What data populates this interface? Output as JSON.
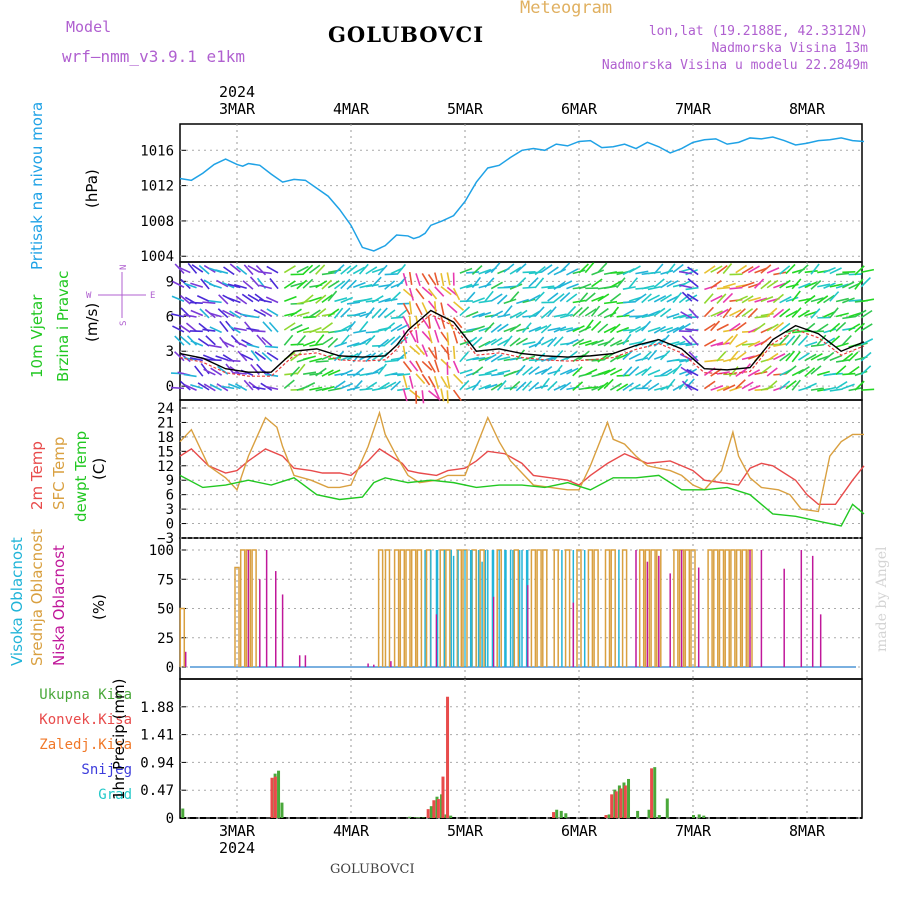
{
  "header": {
    "model_label": "Model",
    "model_name": "wrf—nmm_v3.9.1 e1km",
    "station": "GOLUBOVCI",
    "product": "Meteogram",
    "lonlat": "lon,lat (19.2188E, 42.3312N)",
    "elevation": "Nadmorska Visina 13m",
    "model_elevation": "Nadmorska Visina u modelu 22.2849m",
    "signature": "made by Angel",
    "footer_station": "GOLUBOVCI"
  },
  "colors": {
    "pressure": "#1fa2e6",
    "temp2m": "#e84b4b",
    "sfc_temp": "#d9a040",
    "dewpoint": "#22c822",
    "high_cloud": "#22b4d8",
    "mid_cloud": "#d9a040",
    "low_cloud": "#c0189a",
    "total_precip": "#4aa83a",
    "convective": "#e84b4b",
    "frozen": "#f07828",
    "snow": "#3c3cdc",
    "hail": "#22c8c8",
    "wind_speed": "#000000",
    "wind_red": "#e83a3a"
  },
  "chart_data": [
    {
      "panel": "pressure",
      "type": "line",
      "ylabel": [
        "Pritisak na nivou mora",
        "(hPa)"
      ],
      "yticks": [
        "1004",
        "1008",
        "1012",
        "1016"
      ],
      "ylim": [
        1003.8,
        1018.3
      ],
      "xticks": [
        "3MAR",
        "4MAR",
        "5MAR",
        "6MAR",
        "7MAR",
        "8MAR"
      ],
      "year": "2024",
      "series": [
        {
          "x": [
            0,
            0.1,
            0.2,
            0.3,
            0.4,
            0.5,
            0.55,
            0.6,
            0.7,
            0.8,
            0.9,
            1.0,
            1.1,
            1.2,
            1.3,
            1.4,
            1.5,
            1.6,
            1.7,
            1.8,
            1.9,
            2.0,
            2.05,
            2.1,
            2.15,
            2.2,
            2.3,
            2.4,
            2.5,
            2.6,
            2.7,
            2.8,
            2.9,
            3.0,
            3.1,
            3.2,
            3.3,
            3.4,
            3.5,
            3.6,
            3.7,
            3.8,
            3.9,
            4.0,
            4.1,
            4.2,
            4.3,
            4.4,
            4.5,
            4.6,
            4.7,
            4.8,
            4.9,
            5.0,
            5.1,
            5.2,
            5.3,
            5.4,
            5.5,
            5.6,
            5.7,
            5.8,
            5.9,
            6.0
          ],
          "y": [
            1012.8,
            1012.6,
            1013.4,
            1014.4,
            1015.0,
            1014.4,
            1014.2,
            1014.5,
            1014.3,
            1013.3,
            1012.4,
            1012.7,
            1012.6,
            1011.7,
            1010.8,
            1009.3,
            1007.5,
            1005.0,
            1004.6,
            1005.2,
            1006.4,
            1006.3,
            1006.0,
            1006.2,
            1006.6,
            1007.5,
            1008.0,
            1008.6,
            1010.2,
            1012.4,
            1014.0,
            1014.3,
            1015.2,
            1016.0,
            1016.2,
            1016.0,
            1016.7,
            1016.5,
            1017.0,
            1017.1,
            1016.3,
            1016.4,
            1016.7,
            1016.2,
            1016.9,
            1016.4,
            1015.7,
            1016.2,
            1016.9,
            1017.2,
            1017.3,
            1016.7,
            1016.9,
            1017.4,
            1017.3,
            1017.5,
            1017.1,
            1016.6,
            1016.8,
            1017.1,
            1017.2,
            1017.4,
            1017.1,
            1017.0
          ]
        }
      ]
    },
    {
      "panel": "wind",
      "type": "line",
      "ylabel": [
        "10m Vjetar",
        "Brzina i Pravac",
        "(m/s)"
      ],
      "compass": {
        "n": "N",
        "s": "S",
        "w": "W",
        "e": "E"
      },
      "yticks": [
        "0",
        "3",
        "6",
        "9"
      ],
      "ylim": [
        -0.5,
        9.8
      ],
      "series": [
        {
          "name": "speed",
          "x": [
            0,
            0.2,
            0.4,
            0.6,
            0.8,
            1.0,
            1.2,
            1.4,
            1.6,
            1.8,
            1.9,
            2.0,
            2.2,
            2.4,
            2.6,
            2.8,
            3.0,
            3.2,
            3.4,
            3.6,
            3.8,
            4.0,
            4.2,
            4.4,
            4.6,
            4.8,
            5.0,
            5.2,
            5.4,
            5.6,
            5.8,
            6.0
          ],
          "y": [
            2.8,
            2.4,
            1.5,
            1.2,
            1.2,
            3.0,
            3.2,
            2.6,
            2.5,
            2.6,
            3.5,
            4.8,
            6.5,
            5.5,
            3.0,
            3.2,
            2.8,
            2.6,
            2.5,
            2.6,
            2.8,
            3.5,
            4.0,
            3.2,
            1.5,
            1.4,
            1.6,
            4.0,
            5.2,
            4.5,
            3.0,
            3.8
          ]
        }
      ]
    },
    {
      "panel": "temperature",
      "type": "line",
      "ylabel": [
        "2m Temp",
        "SFC Temp",
        "dewpt Temp",
        "(C)"
      ],
      "yticks": [
        "−3",
        "0",
        "3",
        "6",
        "9",
        "12",
        "15",
        "18",
        "21",
        "24"
      ],
      "ylim": [
        -3,
        24
      ],
      "series": [
        {
          "name": "2m Temp",
          "x": [
            0,
            0.1,
            0.25,
            0.4,
            0.5,
            0.6,
            0.75,
            0.9,
            1.0,
            1.15,
            1.25,
            1.4,
            1.5,
            1.65,
            1.75,
            1.85,
            1.95,
            2.0,
            2.1,
            2.25,
            2.35,
            2.5,
            2.6,
            2.7,
            2.85,
            3.0,
            3.1,
            3.25,
            3.4,
            3.5,
            3.6,
            3.75,
            3.9,
            4.0,
            4.1,
            4.3,
            4.4,
            4.5,
            4.6,
            4.75,
            4.9,
            5.0,
            5.1,
            5.2,
            5.4,
            5.5,
            5.6,
            5.75,
            5.9,
            6.0
          ],
          "y": [
            14,
            15.5,
            12,
            10.5,
            11,
            13,
            15.5,
            14,
            11.5,
            11,
            10.5,
            10.5,
            10,
            13,
            15.5,
            14,
            12.5,
            11,
            10.5,
            10,
            11,
            11.5,
            13,
            15,
            14.5,
            12.5,
            10,
            9.5,
            9,
            8,
            10,
            12.5,
            14.5,
            13.5,
            12.5,
            13,
            12,
            11,
            9,
            8.5,
            8,
            11.5,
            12.5,
            12,
            9,
            6,
            4,
            4,
            9,
            12
          ]
        },
        {
          "name": "SFC Temp",
          "x": [
            0,
            0.1,
            0.25,
            0.4,
            0.5,
            0.6,
            0.75,
            0.85,
            0.9,
            1.0,
            1.15,
            1.3,
            1.4,
            1.5,
            1.65,
            1.75,
            1.8,
            1.9,
            2.0,
            2.1,
            2.25,
            2.35,
            2.5,
            2.6,
            2.7,
            2.8,
            2.9,
            3.0,
            3.1,
            3.25,
            3.4,
            3.5,
            3.6,
            3.75,
            3.8,
            3.9,
            4.0,
            4.1,
            4.3,
            4.4,
            4.5,
            4.6,
            4.75,
            4.85,
            4.9,
            5.0,
            5.1,
            5.25,
            5.35,
            5.45,
            5.6,
            5.7,
            5.8,
            5.9,
            6.0
          ],
          "y": [
            17,
            19.5,
            12,
            9.5,
            7,
            14,
            22,
            20,
            16,
            10,
            9,
            7.5,
            7.5,
            8,
            16,
            23,
            18.5,
            14,
            10,
            8.5,
            9,
            10,
            10,
            16,
            22,
            17,
            13,
            10.5,
            8,
            7.5,
            7,
            7,
            12,
            21,
            17.5,
            16.5,
            14,
            12,
            11,
            10,
            8,
            7,
            11,
            19,
            14,
            9.5,
            7.5,
            7,
            6,
            3,
            2.5,
            14,
            17,
            18.5,
            18.5
          ]
        },
        {
          "name": "dewpt Temp",
          "x": [
            0,
            0.2,
            0.4,
            0.6,
            0.8,
            1.0,
            1.2,
            1.4,
            1.6,
            1.7,
            1.8,
            2.0,
            2.2,
            2.4,
            2.6,
            2.8,
            3.0,
            3.2,
            3.4,
            3.6,
            3.8,
            4.0,
            4.2,
            4.4,
            4.6,
            4.8,
            5.0,
            5.2,
            5.4,
            5.6,
            5.8,
            5.9,
            6.0
          ],
          "y": [
            10,
            7.5,
            8,
            9,
            8,
            9.5,
            6,
            5,
            5.5,
            8.5,
            9.5,
            8.5,
            9,
            8.5,
            7.5,
            8,
            8,
            7.5,
            8.5,
            7,
            9.5,
            9.5,
            10,
            7,
            7,
            7.5,
            6,
            2,
            1.5,
            0.5,
            -0.5,
            4,
            2
          ]
        }
      ]
    },
    {
      "panel": "cloud",
      "type": "bar",
      "ylabel": [
        "Visoka Oblacnost",
        "Srednja Oblacnost",
        "Niska Oblacnost",
        "(%)"
      ],
      "yticks": [
        "0",
        "25",
        "50",
        "75",
        "100"
      ],
      "ylim": [
        0,
        100
      ],
      "series": [
        {
          "name": "Visoka Oblacnost",
          "x": [
            2.15,
            2.2,
            2.25,
            2.4,
            2.55,
            2.6,
            2.65,
            2.7,
            2.75,
            2.85,
            2.9,
            3.0,
            3.05,
            3.35,
            3.45,
            3.55,
            3.85
          ],
          "y": [
            100,
            100,
            100,
            95,
            100,
            100,
            90,
            100,
            100,
            100,
            100,
            100,
            100,
            100,
            100,
            100,
            100
          ]
        },
        {
          "name": "Srednja Oblacnost",
          "x": [
            0.02,
            0.5,
            0.55,
            0.6,
            0.65,
            1.76,
            1.82,
            1.9,
            1.95,
            2.0,
            2.05,
            2.1,
            2.18,
            2.3,
            2.35,
            2.45,
            2.5,
            2.58,
            2.65,
            2.8,
            2.95,
            3.1,
            3.15,
            3.2,
            3.3,
            3.4,
            3.5,
            3.6,
            3.65,
            3.75,
            3.8,
            3.9,
            4.05,
            4.1,
            4.15,
            4.2,
            4.35,
            4.4,
            4.45,
            4.5,
            4.65,
            4.7,
            4.75,
            4.8,
            4.85,
            4.9,
            4.95,
            5.0
          ],
          "y": [
            50,
            85,
            100,
            100,
            100,
            100,
            100,
            100,
            100,
            100,
            100,
            100,
            100,
            100,
            100,
            100,
            100,
            100,
            100,
            100,
            100,
            100,
            100,
            100,
            100,
            100,
            100,
            100,
            100,
            100,
            100,
            100,
            100,
            100,
            100,
            100,
            100,
            100,
            100,
            100,
            100,
            100,
            100,
            100,
            100,
            100,
            100,
            100
          ]
        },
        {
          "name": "Niska Oblacnost",
          "x": [
            0.05,
            0.6,
            0.7,
            0.76,
            0.84,
            0.9,
            1.05,
            1.1,
            1.65,
            1.7,
            1.85,
            2.25,
            2.75,
            3.05,
            3.45,
            4.0,
            4.1,
            4.2,
            4.3,
            4.4,
            4.55,
            5.0,
            5.1,
            5.3,
            5.45,
            5.55,
            5.62
          ],
          "y": [
            13,
            100,
            75,
            100,
            82,
            62,
            10,
            10,
            3,
            2,
            5,
            45,
            60,
            70,
            55,
            100,
            90,
            95,
            80,
            100,
            85,
            100,
            100,
            84,
            100,
            95,
            45
          ]
        }
      ]
    },
    {
      "panel": "precip",
      "type": "bar",
      "ylabel": [
        "1hr Precip (mm)"
      ],
      "legend": [
        "Ukupna Kisa",
        "Konvek.Kisa",
        "Zaledj.Kisa",
        "Snijeg",
        "Grad"
      ],
      "yticks": [
        "0",
        "0.47",
        "0.94",
        "1.41",
        "1.88"
      ],
      "ylim": [
        0,
        2.35
      ],
      "xticks": [
        "3MAR",
        "4MAR",
        "5MAR",
        "6MAR",
        "7MAR",
        "8MAR"
      ],
      "year": "2024",
      "series": [
        {
          "name": "Ukupna Kisa",
          "x": [
            0.02,
            0.83,
            0.86,
            0.89,
            2.01,
            2.06,
            2.09,
            2.13,
            2.2,
            2.25,
            2.29,
            2.33,
            2.37,
            3.3,
            3.34,
            3.38,
            3.76,
            3.81,
            3.85,
            3.89,
            3.93,
            4.01,
            4.11,
            4.16,
            4.2,
            4.27,
            4.5,
            4.55,
            4.59
          ],
          "y": [
            0.16,
            0.75,
            0.8,
            0.26,
            0.02,
            0.01,
            0.01,
            0.01,
            0.2,
            0.36,
            0.4,
            0.06,
            0.04,
            0.14,
            0.12,
            0.08,
            0.06,
            0.48,
            0.55,
            0.6,
            0.66,
            0.12,
            0.14,
            0.86,
            0.05,
            0.33,
            0.05,
            0.06,
            0.04
          ]
        },
        {
          "name": "Konvek.Kisa",
          "x": [
            0.82,
            0.85,
            2.19,
            2.24,
            2.28,
            2.32,
            2.36,
            3.29,
            3.75,
            3.8,
            3.84,
            3.88,
            3.92,
            4.15
          ],
          "y": [
            0.68,
            0.7,
            0.15,
            0.3,
            0.32,
            0.7,
            2.05,
            0.1,
            0.05,
            0.4,
            0.45,
            0.5,
            0.55,
            0.84
          ]
        }
      ]
    }
  ]
}
